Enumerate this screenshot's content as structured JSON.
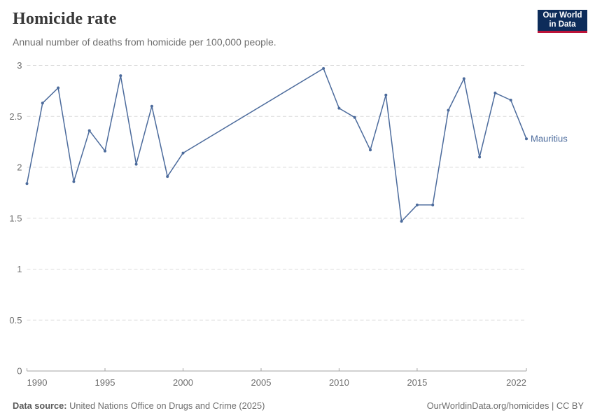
{
  "header": {
    "title": "Homicide rate",
    "subtitle": "Annual number of deaths from homicide per 100,000 people."
  },
  "logo": {
    "line1": "Our World",
    "line2": "in Data",
    "bg_color": "#0d2c5a",
    "accent_color": "#bc1339"
  },
  "footer": {
    "source_label": "Data source:",
    "source_text": "United Nations Office on Drugs and Crime (2025)",
    "credit": "OurWorldinData.org/homicides | CC BY"
  },
  "chart_data": {
    "type": "line",
    "title": "Homicide rate",
    "subtitle": "Annual number of deaths from homicide per 100,000 people.",
    "entity_label": "Mauritius",
    "line_color": "#4C6B9C",
    "grid": "dashed-horizontal",
    "legend_position": "end-of-line-label",
    "xlim": [
      1990,
      2022
    ],
    "ylim": [
      0,
      3
    ],
    "x_ticks": [
      1990,
      1995,
      2000,
      2005,
      2010,
      2015,
      2022
    ],
    "y_ticks": [
      0,
      0.5,
      1,
      1.5,
      2,
      2.5,
      3
    ],
    "note": "No data points between 2001 and 2008; line connects 2000 directly to 2009",
    "series": [
      {
        "name": "Mauritius",
        "color": "#4C6B9C",
        "points": [
          [
            1990,
            1.84
          ],
          [
            1991,
            2.63
          ],
          [
            1992,
            2.78
          ],
          [
            1993,
            1.86
          ],
          [
            1994,
            2.36
          ],
          [
            1995,
            2.16
          ],
          [
            1996,
            2.9
          ],
          [
            1997,
            2.03
          ],
          [
            1998,
            2.6
          ],
          [
            1999,
            1.91
          ],
          [
            2000,
            2.14
          ],
          [
            2009,
            2.97
          ],
          [
            2010,
            2.58
          ],
          [
            2011,
            2.49
          ],
          [
            2012,
            2.17
          ],
          [
            2013,
            2.71
          ],
          [
            2014,
            1.47
          ],
          [
            2015,
            1.63
          ],
          [
            2016,
            1.63
          ],
          [
            2017,
            2.56
          ],
          [
            2018,
            2.87
          ],
          [
            2019,
            2.1
          ],
          [
            2020,
            2.73
          ],
          [
            2021,
            2.66
          ],
          [
            2022,
            2.28
          ]
        ]
      }
    ]
  }
}
